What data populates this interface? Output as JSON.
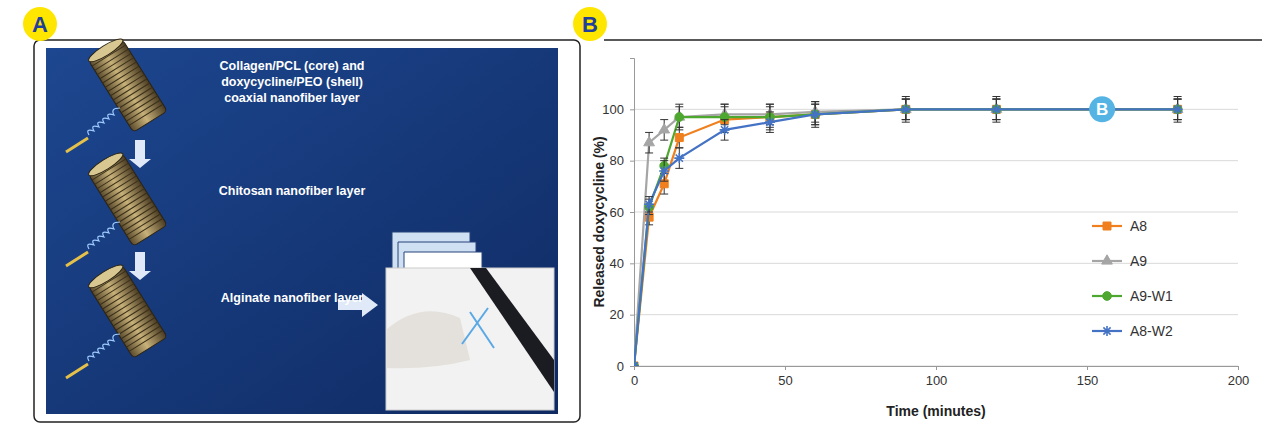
{
  "diagram": {
    "panel_label": "A",
    "steps": [
      "Collagen/PCL (core) and doxycycline/PEO (shell) coaxial nanofiber layer",
      "Chitosan nanofiber layer",
      "Alginate nanofiber layer"
    ]
  },
  "chart_data": {
    "type": "line",
    "panel_label": "B",
    "x_label": "Time (minutes)",
    "y_label": "Released doxycycline (%)",
    "x": [
      0,
      5,
      10,
      15,
      30,
      45,
      60,
      90,
      120,
      180
    ],
    "series": [
      {
        "name": "A8",
        "color": "#f07f1e",
        "marker": "square",
        "values": [
          0,
          58,
          71,
          89,
          96,
          97,
          98,
          100,
          100,
          100
        ],
        "errors": [
          0,
          3,
          4,
          4,
          5,
          5,
          5,
          5,
          5,
          5
        ]
      },
      {
        "name": "A9",
        "color": "#a5a5a5",
        "marker": "triangle",
        "values": [
          0,
          87,
          92,
          97,
          98,
          98,
          99,
          100,
          100,
          100
        ],
        "errors": [
          0,
          4,
          4,
          4,
          4,
          4,
          4,
          4,
          4,
          4
        ]
      },
      {
        "name": "A9-W1",
        "color": "#4ea72e",
        "marker": "circle",
        "values": [
          0,
          62,
          78,
          97,
          97,
          97,
          98,
          100,
          100,
          100
        ],
        "errors": [
          0,
          3,
          3,
          5,
          5,
          4,
          4,
          4,
          4,
          4
        ]
      },
      {
        "name": "A8-W2",
        "color": "#4472c4",
        "marker": "asterisk",
        "values": [
          0,
          63,
          76,
          81,
          92,
          95,
          98,
          100,
          100,
          100
        ],
        "errors": [
          0,
          3,
          4,
          4,
          4,
          4,
          4,
          4,
          4,
          4
        ]
      }
    ],
    "xlim": [
      0,
      200
    ],
    "xticks": [
      0,
      50,
      100,
      150,
      200
    ],
    "ylim": [
      0,
      120
    ],
    "yticks": [
      0,
      20,
      40,
      60,
      80,
      100
    ],
    "grid": true,
    "legend": "right",
    "annotations": [
      {
        "text": "B",
        "x": 155,
        "y": 100
      }
    ]
  }
}
